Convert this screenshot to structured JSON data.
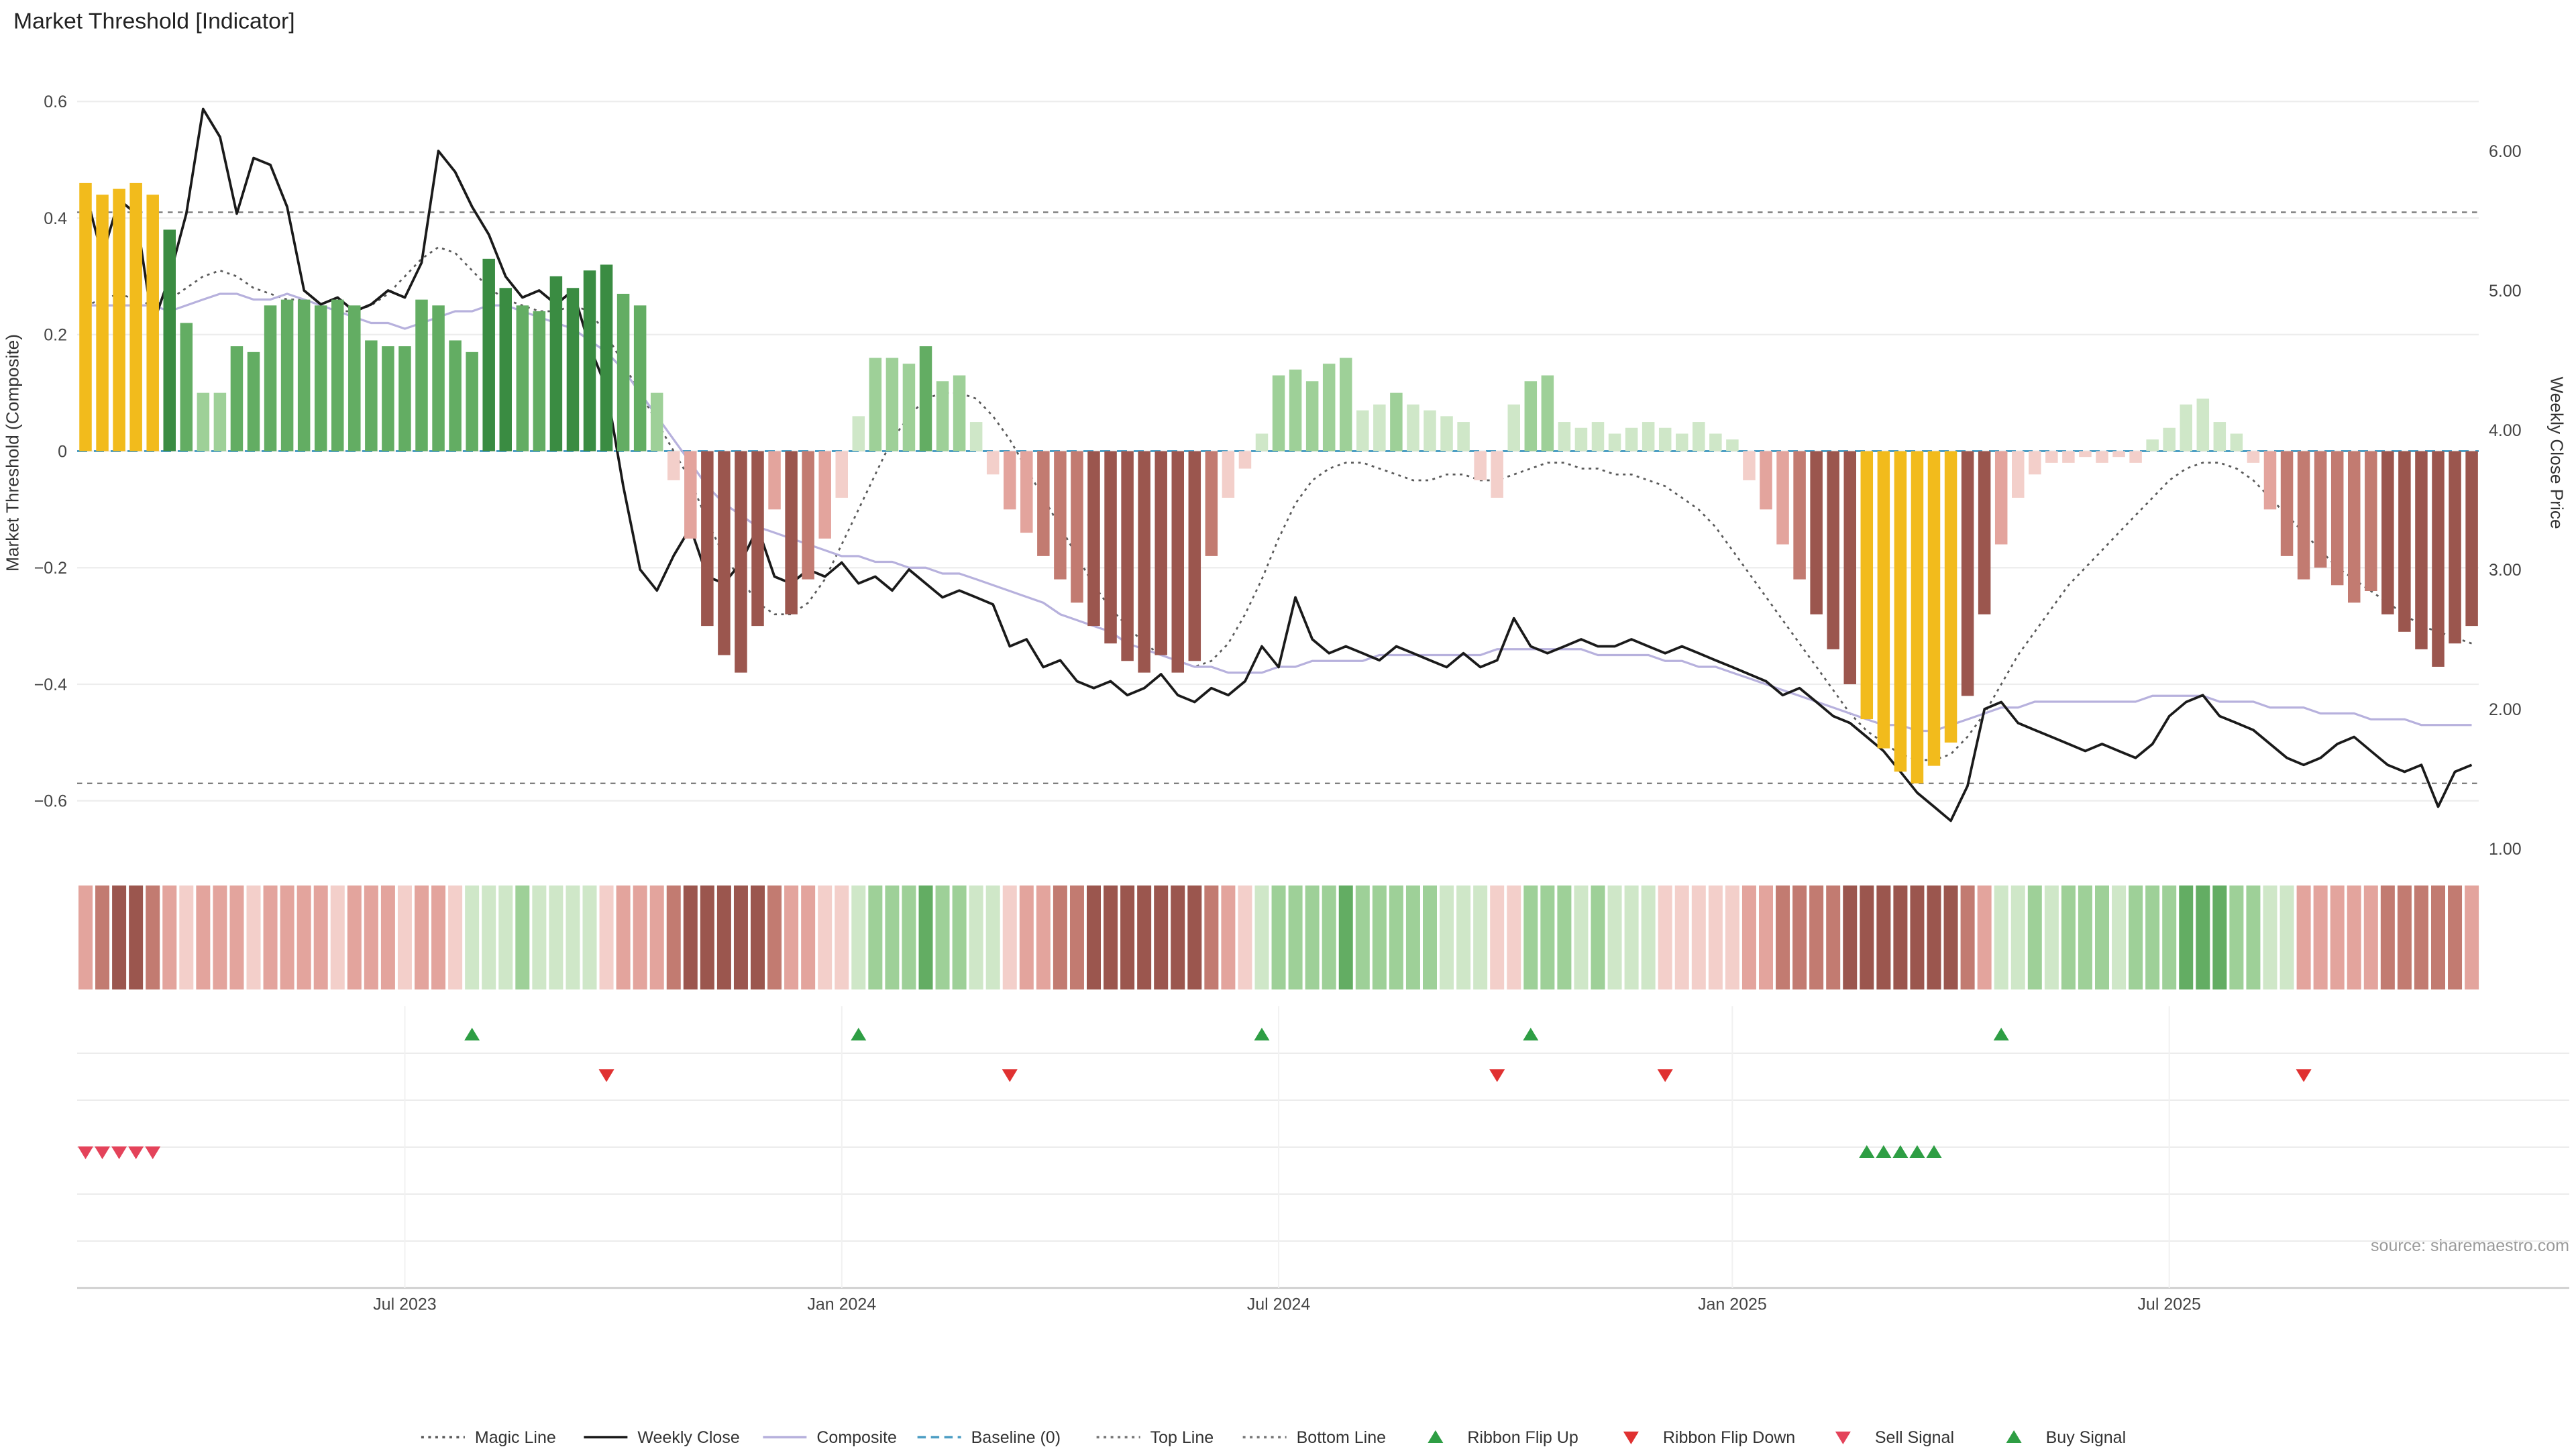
{
  "title": "Market Threshold [Indicator]",
  "source": "source: sharemaestro.com",
  "axes": {
    "left_label": "Market Threshold (Composite)",
    "right_label": "Weekly Close Price",
    "left_ticks": [
      "0.6",
      "0.4",
      "0.2",
      "0",
      "−0.2",
      "−0.4",
      "−0.6"
    ],
    "left_tick_values": [
      0.6,
      0.4,
      0.2,
      0,
      -0.2,
      -0.4,
      -0.6
    ],
    "right_ticks": [
      "6.00",
      "5.00",
      "4.00",
      "3.00",
      "2.00",
      "1.00"
    ],
    "right_tick_values": [
      6,
      5,
      4,
      3,
      2,
      1
    ],
    "x_ticks": [
      "Jul 2023",
      "Jan 2024",
      "Jul 2024",
      "Jan 2025",
      "Jul 2025"
    ],
    "x_tick_weeks": [
      19,
      45,
      71,
      98,
      124
    ]
  },
  "colors": {
    "positive_shades": [
      "#cfe7c8",
      "#9ed098",
      "#63ad63",
      "#3a8c42"
    ],
    "negative_shades": [
      "#f3cfca",
      "#e3a49d",
      "#c27b71",
      "#9b564e"
    ],
    "extreme_bar": "#f2bb1c",
    "weekly_close": "#1a1a1a",
    "composite": "#b7b1dd",
    "magic_line": "#5a5a5a",
    "baseline": "#4d9ec4",
    "top_bottom_line": "#777777",
    "flip_up": "#2e9e44",
    "flip_down": "#e03131",
    "sell": "#e4435a",
    "buy": "#2e9e44",
    "grid": "#ededed"
  },
  "legend": [
    {
      "label": "Magic Line",
      "swatch": "dotted-line",
      "color": "#5a5a5a"
    },
    {
      "label": "Weekly Close",
      "swatch": "solid-line",
      "color": "#1a1a1a"
    },
    {
      "label": "Composite",
      "swatch": "solid-line",
      "color": "#b7b1dd"
    },
    {
      "label": "Baseline (0)",
      "swatch": "dashed-line",
      "color": "#4d9ec4"
    },
    {
      "label": "Top Line",
      "swatch": "dotted-line",
      "color": "#777777"
    },
    {
      "label": "Bottom Line",
      "swatch": "dotted-line",
      "color": "#777777"
    },
    {
      "label": "Ribbon Flip Up",
      "swatch": "triangle-up",
      "color": "#2e9e44"
    },
    {
      "label": "Ribbon Flip Down",
      "swatch": "triangle-down",
      "color": "#e03131"
    },
    {
      "label": "Sell Signal",
      "swatch": "triangle-down",
      "color": "#e4435a"
    },
    {
      "label": "Buy Signal",
      "swatch": "triangle-up",
      "color": "#2e9e44"
    }
  ],
  "chart_data": {
    "type": "bar+line",
    "x_unit": "weeks",
    "n_weeks": 143,
    "left_axis_range": [
      -0.7,
      0.69
    ],
    "right_axis_range": [
      0.8,
      6.7
    ],
    "grid": true,
    "legend_position": "bottom",
    "top_line": 0.41,
    "bottom_line": -0.57,
    "baseline": 0,
    "threshold_bars": [
      0.46,
      0.44,
      0.45,
      0.46,
      0.44,
      0.38,
      0.22,
      0.1,
      0.1,
      0.18,
      0.17,
      0.25,
      0.26,
      0.26,
      0.25,
      0.26,
      0.25,
      0.19,
      0.18,
      0.18,
      0.26,
      0.25,
      0.19,
      0.17,
      0.33,
      0.28,
      0.25,
      0.24,
      0.3,
      0.28,
      0.31,
      0.32,
      0.27,
      0.25,
      0.1,
      -0.05,
      -0.15,
      -0.3,
      -0.35,
      -0.38,
      -0.3,
      -0.1,
      -0.28,
      -0.22,
      -0.15,
      -0.08,
      0.06,
      0.16,
      0.16,
      0.15,
      0.18,
      0.12,
      0.13,
      0.05,
      -0.04,
      -0.1,
      -0.14,
      -0.18,
      -0.22,
      -0.26,
      -0.3,
      -0.33,
      -0.36,
      -0.38,
      -0.35,
      -0.38,
      -0.36,
      -0.18,
      -0.08,
      -0.03,
      0.03,
      0.13,
      0.14,
      0.12,
      0.15,
      0.16,
      0.07,
      0.08,
      0.1,
      0.08,
      0.07,
      0.06,
      0.05,
      -0.05,
      -0.08,
      0.08,
      0.12,
      0.13,
      0.05,
      0.04,
      0.05,
      0.03,
      0.04,
      0.05,
      0.04,
      0.03,
      0.05,
      0.03,
      0.02,
      -0.05,
      -0.1,
      -0.16,
      -0.22,
      -0.28,
      -0.34,
      -0.4,
      -0.46,
      -0.51,
      -0.55,
      -0.57,
      -0.54,
      -0.5,
      -0.42,
      -0.28,
      -0.16,
      -0.08,
      -0.04,
      -0.02,
      -0.02,
      -0.01,
      -0.02,
      -0.01,
      -0.02,
      0.02,
      0.04,
      0.08,
      0.09,
      0.05,
      0.03,
      -0.02,
      -0.1,
      -0.18,
      -0.22,
      -0.2,
      -0.23,
      -0.26,
      -0.24,
      -0.28,
      -0.31,
      -0.34,
      -0.37,
      -0.33,
      -0.3
    ],
    "yellow_weeks": [
      0,
      1,
      2,
      3,
      4,
      106,
      107,
      108,
      109,
      110,
      111
    ],
    "weekly_close": [
      5.7,
      5.25,
      5.65,
      5.55,
      4.75,
      5.1,
      5.55,
      6.3,
      6.1,
      5.55,
      5.95,
      5.9,
      5.6,
      5.0,
      4.9,
      4.95,
      4.85,
      4.9,
      5.0,
      4.95,
      5.2,
      6.0,
      5.85,
      5.6,
      5.4,
      5.1,
      4.95,
      5.0,
      4.9,
      5.0,
      4.6,
      4.3,
      3.6,
      3.0,
      2.85,
      3.1,
      3.3,
      2.95,
      2.9,
      3.05,
      3.3,
      2.95,
      2.9,
      3.0,
      2.95,
      3.05,
      2.9,
      2.95,
      2.85,
      3.0,
      2.9,
      2.8,
      2.85,
      2.8,
      2.75,
      2.45,
      2.5,
      2.3,
      2.35,
      2.2,
      2.15,
      2.2,
      2.1,
      2.15,
      2.25,
      2.1,
      2.05,
      2.15,
      2.1,
      2.2,
      2.45,
      2.3,
      2.8,
      2.5,
      2.4,
      2.45,
      2.4,
      2.35,
      2.45,
      2.4,
      2.35,
      2.3,
      2.4,
      2.3,
      2.35,
      2.65,
      2.45,
      2.4,
      2.45,
      2.5,
      2.45,
      2.45,
      2.5,
      2.45,
      2.4,
      2.45,
      2.4,
      2.35,
      2.3,
      2.25,
      2.2,
      2.1,
      2.15,
      2.05,
      1.95,
      1.9,
      1.8,
      1.7,
      1.55,
      1.4,
      1.3,
      1.2,
      1.45,
      2.0,
      2.05,
      1.9,
      1.85,
      1.8,
      1.75,
      1.7,
      1.75,
      1.7,
      1.65,
      1.75,
      1.95,
      2.05,
      2.1,
      1.95,
      1.9,
      1.85,
      1.75,
      1.65,
      1.6,
      1.65,
      1.75,
      1.8,
      1.7,
      1.6,
      1.55,
      1.6,
      1.3,
      1.55,
      1.6
    ],
    "composite": [
      0.25,
      0.25,
      0.25,
      0.25,
      0.25,
      0.24,
      0.25,
      0.26,
      0.27,
      0.27,
      0.26,
      0.26,
      0.27,
      0.26,
      0.25,
      0.24,
      0.23,
      0.22,
      0.22,
      0.21,
      0.22,
      0.23,
      0.24,
      0.24,
      0.25,
      0.25,
      0.24,
      0.23,
      0.22,
      0.21,
      0.19,
      0.17,
      0.14,
      0.1,
      0.06,
      0.02,
      -0.02,
      -0.06,
      -0.09,
      -0.11,
      -0.13,
      -0.14,
      -0.15,
      -0.16,
      -0.17,
      -0.18,
      -0.18,
      -0.19,
      -0.19,
      -0.2,
      -0.2,
      -0.21,
      -0.21,
      -0.22,
      -0.23,
      -0.24,
      -0.25,
      -0.26,
      -0.28,
      -0.29,
      -0.3,
      -0.31,
      -0.33,
      -0.34,
      -0.35,
      -0.36,
      -0.37,
      -0.37,
      -0.38,
      -0.38,
      -0.38,
      -0.37,
      -0.37,
      -0.36,
      -0.36,
      -0.36,
      -0.36,
      -0.35,
      -0.35,
      -0.35,
      -0.35,
      -0.35,
      -0.35,
      -0.35,
      -0.34,
      -0.34,
      -0.34,
      -0.34,
      -0.34,
      -0.34,
      -0.35,
      -0.35,
      -0.35,
      -0.35,
      -0.36,
      -0.36,
      -0.37,
      -0.37,
      -0.38,
      -0.39,
      -0.4,
      -0.41,
      -0.42,
      -0.43,
      -0.44,
      -0.45,
      -0.46,
      -0.47,
      -0.47,
      -0.48,
      -0.48,
      -0.47,
      -0.46,
      -0.45,
      -0.44,
      -0.44,
      -0.43,
      -0.43,
      -0.43,
      -0.43,
      -0.43,
      -0.43,
      -0.43,
      -0.42,
      -0.42,
      -0.42,
      -0.42,
      -0.43,
      -0.43,
      -0.43,
      -0.44,
      -0.44,
      -0.44,
      -0.45,
      -0.45,
      -0.45,
      -0.46,
      -0.46,
      -0.46,
      -0.47,
      -0.47,
      -0.47,
      -0.47
    ],
    "magic_line": [
      0.25,
      0.26,
      0.27,
      0.26,
      0.25,
      0.26,
      0.28,
      0.3,
      0.31,
      0.3,
      0.28,
      0.27,
      0.26,
      0.26,
      0.25,
      0.24,
      0.24,
      0.25,
      0.27,
      0.3,
      0.33,
      0.35,
      0.34,
      0.31,
      0.28,
      0.26,
      0.25,
      0.24,
      0.24,
      0.25,
      0.24,
      0.2,
      0.15,
      0.1,
      0.05,
      0.0,
      -0.05,
      -0.12,
      -0.18,
      -0.22,
      -0.26,
      -0.28,
      -0.28,
      -0.26,
      -0.22,
      -0.16,
      -0.1,
      -0.04,
      0.02,
      0.06,
      0.09,
      0.1,
      0.1,
      0.09,
      0.06,
      0.02,
      -0.03,
      -0.08,
      -0.13,
      -0.18,
      -0.23,
      -0.27,
      -0.3,
      -0.33,
      -0.35,
      -0.36,
      -0.37,
      -0.36,
      -0.33,
      -0.28,
      -0.22,
      -0.15,
      -0.09,
      -0.05,
      -0.03,
      -0.02,
      -0.02,
      -0.03,
      -0.04,
      -0.05,
      -0.05,
      -0.04,
      -0.04,
      -0.05,
      -0.05,
      -0.04,
      -0.03,
      -0.02,
      -0.02,
      -0.03,
      -0.03,
      -0.04,
      -0.04,
      -0.05,
      -0.06,
      -0.08,
      -0.1,
      -0.13,
      -0.17,
      -0.21,
      -0.25,
      -0.29,
      -0.33,
      -0.37,
      -0.41,
      -0.45,
      -0.48,
      -0.5,
      -0.52,
      -0.53,
      -0.53,
      -0.52,
      -0.49,
      -0.45,
      -0.4,
      -0.35,
      -0.31,
      -0.27,
      -0.23,
      -0.2,
      -0.17,
      -0.14,
      -0.11,
      -0.08,
      -0.05,
      -0.03,
      -0.02,
      -0.02,
      -0.03,
      -0.05,
      -0.08,
      -0.11,
      -0.14,
      -0.17,
      -0.2,
      -0.22,
      -0.24,
      -0.26,
      -0.28,
      -0.3,
      -0.31,
      -0.32,
      -0.33
    ],
    "ribbon": [
      -0.5,
      -0.6,
      -0.9,
      -0.85,
      -0.6,
      -0.45,
      -0.4,
      -0.45,
      -0.5,
      -0.45,
      -0.4,
      -0.45,
      -0.5,
      -0.5,
      -0.45,
      -0.4,
      -0.45,
      -0.5,
      -0.45,
      -0.4,
      -0.45,
      -0.45,
      -0.35,
      0.3,
      0.35,
      0.4,
      0.45,
      0.4,
      0.35,
      0.4,
      0.35,
      -0.4,
      -0.45,
      -0.5,
      -0.55,
      -0.7,
      -0.85,
      -0.9,
      -0.9,
      -0.85,
      -0.8,
      -0.6,
      -0.55,
      -0.5,
      -0.4,
      -0.35,
      0.35,
      0.5,
      0.55,
      0.5,
      0.6,
      0.5,
      0.45,
      0.4,
      0.3,
      -0.4,
      -0.5,
      -0.55,
      -0.6,
      -0.65,
      -0.8,
      -0.85,
      -0.9,
      -0.9,
      -0.85,
      -0.9,
      -0.85,
      -0.7,
      -0.55,
      -0.4,
      0.35,
      0.5,
      0.55,
      0.5,
      0.55,
      0.6,
      0.45,
      0.5,
      0.55,
      0.5,
      0.45,
      0.4,
      0.35,
      0.3,
      -0.4,
      -0.35,
      0.45,
      0.5,
      0.45,
      0.4,
      0.45,
      0.4,
      0.35,
      0.4,
      -0.3,
      -0.35,
      -0.3,
      -0.35,
      -0.4,
      -0.5,
      -0.55,
      -0.6,
      -0.65,
      -0.7,
      -0.75,
      -0.8,
      -0.9,
      -0.95,
      -0.95,
      -0.9,
      -0.9,
      -0.85,
      -0.7,
      -0.5,
      0.35,
      0.4,
      0.45,
      0.4,
      0.45,
      0.5,
      0.45,
      0.4,
      0.45,
      0.5,
      0.55,
      0.6,
      0.65,
      0.6,
      0.55,
      0.5,
      0.4,
      0.35,
      -0.45,
      -0.5,
      -0.55,
      -0.5,
      -0.55,
      -0.6,
      -0.65,
      -0.7,
      -0.75,
      -0.6,
      -0.55
    ],
    "signals": {
      "ribbon_flip_up_weeks": [
        23,
        46,
        70,
        86,
        114
      ],
      "ribbon_flip_down_weeks": [
        31,
        55,
        84,
        94,
        132
      ],
      "sell_weeks": [
        0,
        1,
        2,
        3,
        4
      ],
      "buy_weeks": [
        106,
        107,
        108,
        109,
        110
      ]
    }
  }
}
